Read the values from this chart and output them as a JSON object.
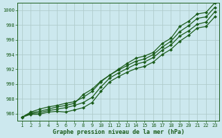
{
  "xlabel": "Graphe pression niveau de la mer (hPa)",
  "bg_color": "#cce8ee",
  "grid_color": "#b0cccc",
  "line_color": "#1a5c1a",
  "x_values": [
    1,
    2,
    3,
    4,
    5,
    6,
    7,
    8,
    9,
    10,
    11,
    12,
    13,
    14,
    15,
    16,
    17,
    18,
    19,
    20,
    21,
    22,
    23
  ],
  "series": [
    [
      985.5,
      986.2,
      986.6,
      986.9,
      987.1,
      987.4,
      987.6,
      988.2,
      989.0,
      990.3,
      991.2,
      992.0,
      992.8,
      993.5,
      993.8,
      994.3,
      995.5,
      996.2,
      997.8,
      998.5,
      999.5,
      999.7,
      1001.0
    ],
    [
      985.5,
      986.1,
      986.3,
      986.6,
      986.9,
      987.1,
      987.4,
      988.6,
      989.3,
      990.4,
      991.2,
      991.9,
      992.5,
      993.1,
      993.4,
      994.0,
      995.0,
      995.8,
      997.1,
      997.9,
      998.9,
      999.1,
      1000.4
    ],
    [
      985.5,
      986.0,
      986.1,
      986.4,
      986.6,
      986.8,
      987.1,
      987.5,
      988.2,
      989.6,
      990.8,
      991.5,
      992.1,
      992.7,
      993.0,
      993.6,
      994.6,
      995.3,
      996.5,
      997.2,
      998.1,
      998.4,
      999.8
    ],
    [
      985.5,
      985.9,
      985.9,
      986.2,
      986.3,
      986.2,
      986.5,
      986.8,
      987.5,
      989.0,
      990.3,
      991.0,
      991.6,
      992.1,
      992.4,
      993.0,
      994.0,
      994.7,
      995.8,
      996.6,
      997.6,
      997.8,
      999.1
    ]
  ],
  "ylim": [
    985.0,
    1001.0
  ],
  "ytick_step": 2,
  "yticks": [
    986,
    988,
    990,
    992,
    994,
    996,
    998,
    1000
  ],
  "xlim": [
    0.5,
    23.5
  ],
  "marker": "D",
  "markersize": 2.2,
  "linewidth": 0.9,
  "tick_fontsize": 5.0,
  "xlabel_fontsize": 6.0
}
